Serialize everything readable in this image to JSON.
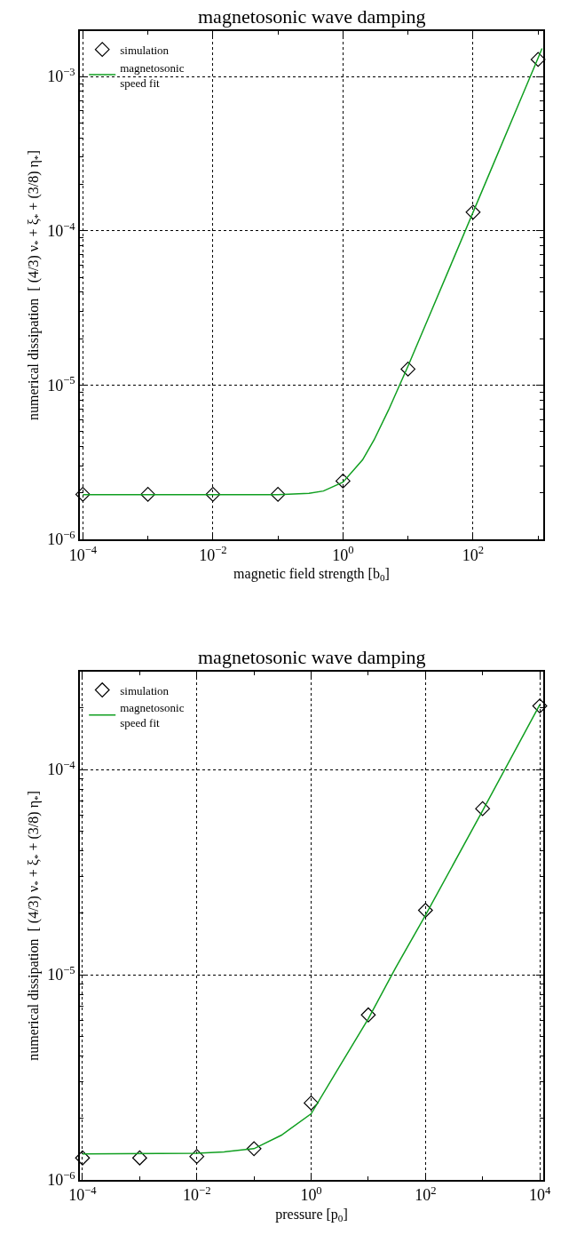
{
  "chart_data": [
    {
      "type": "scatter",
      "title": "magnetosonic wave damping",
      "xlabel": "magnetic field strength [b$_{0}$]",
      "ylabel": "numerical dissipation  [ (4/3) ν$_{*}$ + ξ$_{*}$ + (3/8) η$_{*}$]",
      "log": "xy",
      "grid": true,
      "legend": "top left",
      "xlim": [
        9e-05,
        1200
      ],
      "ylim": [
        1e-06,
        0.00197
      ],
      "xticks": [
        {
          "value": 0.0001,
          "label": "10$^{−4}$"
        },
        {
          "value": 0.001,
          "label": null
        },
        {
          "value": 0.01,
          "label": "10$^{−2}$"
        },
        {
          "value": 0.1,
          "label": null
        },
        {
          "value": 1,
          "label": "10$^{0}$"
        },
        {
          "value": 10,
          "label": null
        },
        {
          "value": 100,
          "label": "10$^{2}$"
        },
        {
          "value": 1000,
          "label": null
        }
      ],
      "yticks": [
        {
          "value": 1e-06,
          "label": "10$^{−6}$"
        },
        {
          "value": 2e-06,
          "label": null
        },
        {
          "value": 3e-06,
          "label": null
        },
        {
          "value": 4e-06,
          "label": null
        },
        {
          "value": 5e-06,
          "label": null
        },
        {
          "value": 6e-06,
          "label": null
        },
        {
          "value": 7e-06,
          "label": null
        },
        {
          "value": 8e-06,
          "label": null
        },
        {
          "value": 9e-06,
          "label": null
        },
        {
          "value": 1e-05,
          "label": "10$^{−5}$"
        },
        {
          "value": 2e-05,
          "label": null
        },
        {
          "value": 3e-05,
          "label": null
        },
        {
          "value": 4e-05,
          "label": null
        },
        {
          "value": 5e-05,
          "label": null
        },
        {
          "value": 6e-05,
          "label": null
        },
        {
          "value": 7e-05,
          "label": null
        },
        {
          "value": 8e-05,
          "label": null
        },
        {
          "value": 9e-05,
          "label": null
        },
        {
          "value": 0.0001,
          "label": "10$^{−4}$"
        },
        {
          "value": 0.0002,
          "label": null
        },
        {
          "value": 0.0003,
          "label": null
        },
        {
          "value": 0.0004,
          "label": null
        },
        {
          "value": 0.0005,
          "label": null
        },
        {
          "value": 0.0006,
          "label": null
        },
        {
          "value": 0.0007,
          "label": null
        },
        {
          "value": 0.0008,
          "label": null
        },
        {
          "value": 0.0009,
          "label": null
        },
        {
          "value": 0.001,
          "label": "10$^{−3}$"
        }
      ],
      "series": [
        {
          "name": "simulation",
          "marker": "diamond",
          "color": "#000000",
          "x": [
            0.0001,
            0.001,
            0.01,
            0.1,
            1,
            10,
            100,
            1000
          ],
          "values": [
            1.96e-06,
            1.96e-06,
            1.96e-06,
            1.96e-06,
            2.39e-06,
            1.27e-05,
            0.000132,
            0.00129
          ]
        },
        {
          "name": "magnetosonic\nspeed fit",
          "type": "line",
          "marker": "none",
          "line_style": "solid",
          "color": "#109f20",
          "x": [
            0.0001,
            0.1,
            0.3,
            0.5,
            1,
            2,
            3,
            5,
            10,
            20,
            50,
            100,
            200,
            500,
            1000,
            1150
          ],
          "values": [
            1.95e-06,
            1.95e-06,
            1.99e-06,
            2.06e-06,
            2.35e-06,
            3.28e-06,
            4.41e-06,
            6.88e-06,
            1.33e-05,
            2.65e-05,
            6.6e-05,
            0.000132,
            0.000264,
            0.00066,
            0.00132,
            0.00152
          ]
        }
      ]
    },
    {
      "type": "scatter",
      "title": "magnetosonic wave damping",
      "xlabel": "pressure [p$_{0}$]",
      "ylabel": "numerical dissipation  [ (4/3) ν$_{*}$ + ξ$_{*}$ + (3/8) η$_{*}$]",
      "log": "xy",
      "grid": true,
      "legend": "top left",
      "xlim": [
        9e-05,
        11500
      ],
      "ylim": [
        1e-06,
        0.0003
      ],
      "xticks": [
        {
          "value": 0.0001,
          "label": "10$^{−4}$"
        },
        {
          "value": 0.001,
          "label": null
        },
        {
          "value": 0.01,
          "label": "10$^{−2}$"
        },
        {
          "value": 0.1,
          "label": null
        },
        {
          "value": 1,
          "label": "10$^{0}$"
        },
        {
          "value": 10,
          "label": null
        },
        {
          "value": 100,
          "label": "10$^{2}$"
        },
        {
          "value": 1000,
          "label": null
        },
        {
          "value": 10000,
          "label": "10$^{4}$"
        }
      ],
      "yticks": [
        {
          "value": 1e-06,
          "label": "10$^{−6}$"
        },
        {
          "value": 2e-06,
          "label": null
        },
        {
          "value": 3e-06,
          "label": null
        },
        {
          "value": 4e-06,
          "label": null
        },
        {
          "value": 5e-06,
          "label": null
        },
        {
          "value": 6e-06,
          "label": null
        },
        {
          "value": 7e-06,
          "label": null
        },
        {
          "value": 8e-06,
          "label": null
        },
        {
          "value": 9e-06,
          "label": null
        },
        {
          "value": 1e-05,
          "label": "10$^{−5}$"
        },
        {
          "value": 2e-05,
          "label": null
        },
        {
          "value": 3e-05,
          "label": null
        },
        {
          "value": 4e-05,
          "label": null
        },
        {
          "value": 5e-05,
          "label": null
        },
        {
          "value": 6e-05,
          "label": null
        },
        {
          "value": 7e-05,
          "label": null
        },
        {
          "value": 8e-05,
          "label": null
        },
        {
          "value": 9e-05,
          "label": null
        },
        {
          "value": 0.0001,
          "label": "10$^{−4}$"
        },
        {
          "value": 0.0002,
          "label": null
        }
      ],
      "series": [
        {
          "name": "simulation",
          "marker": "diamond",
          "color": "#000000",
          "x": [
            0.0001,
            0.001,
            0.01,
            0.1,
            1,
            10,
            100,
            1000,
            10000
          ],
          "values": [
            1.28e-06,
            1.28e-06,
            1.3e-06,
            1.42e-06,
            2.37e-06,
            6.37e-06,
            2.06e-05,
            6.44e-05,
            0.000204
          ]
        },
        {
          "name": "magnetosonic\nspeed fit",
          "type": "line",
          "marker": "none",
          "line_style": "solid",
          "color": "#109f20",
          "x": [
            0.0001,
            0.01,
            0.03,
            0.1,
            0.3,
            1,
            3,
            10,
            30,
            100,
            1000,
            10000
          ],
          "values": [
            1.34e-06,
            1.35e-06,
            1.37e-06,
            1.42e-06,
            1.65e-06,
            2.1e-06,
            3.5e-06,
            6.1e-06,
            1.08e-05,
            1.95e-05,
            6.3e-05,
            0.000207
          ]
        }
      ]
    }
  ]
}
